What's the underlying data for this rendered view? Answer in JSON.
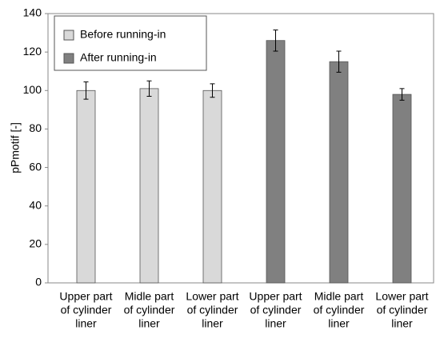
{
  "chart_data": {
    "type": "bar",
    "ylabel": "pPmotif [-]",
    "categories": [
      [
        "Upper part",
        "of cylinder",
        "liner"
      ],
      [
        "Midle part",
        "of cylinder",
        "liner"
      ],
      [
        "Lower part",
        "of cylinder",
        "liner"
      ],
      [
        "Upper part",
        "of cylinder",
        "liner"
      ],
      [
        "Midle part",
        "of cylinder",
        "liner"
      ],
      [
        "Lower part",
        "of cylinder",
        "liner"
      ]
    ],
    "series": [
      {
        "name": "Before running-in",
        "color": "#d9d9d9",
        "values": [
          100,
          101,
          100,
          null,
          null,
          null
        ],
        "errors": [
          4.5,
          4,
          3.5,
          null,
          null,
          null
        ]
      },
      {
        "name": "After running-in",
        "color": "#808080",
        "values": [
          null,
          null,
          null,
          126,
          115,
          98
        ],
        "errors": [
          null,
          null,
          null,
          5.5,
          5.5,
          3
        ]
      }
    ],
    "ylim": [
      0,
      140
    ],
    "yticks": [
      0,
      20,
      40,
      60,
      80,
      100,
      120,
      140
    ],
    "grid": false,
    "legend": "upper left"
  }
}
